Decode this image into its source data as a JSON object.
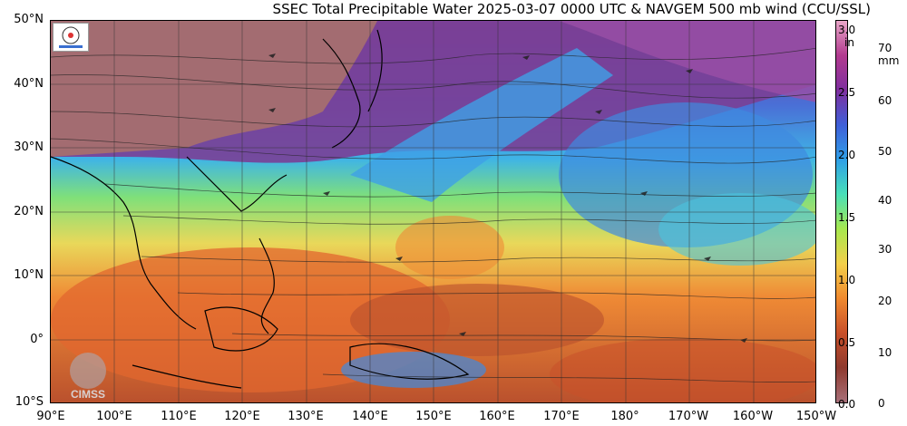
{
  "title": "SSEC Total Precipitable Water  2025-03-07 0000 UTC & NAVGEM 500 mb wind (CCU/SSL)",
  "lat_labels": [
    "50°N",
    "40°N",
    "30°N",
    "20°N",
    "10°N",
    "0°",
    "10°S"
  ],
  "lon_labels": [
    "90°E",
    "100°E",
    "110°E",
    "120°E",
    "130°E",
    "140°E",
    "150°E",
    "160°E",
    "170°E",
    "180°",
    "170°W",
    "160°W",
    "150°W"
  ],
  "colorbar": {
    "inch_unit": "in",
    "mm_unit": "mm",
    "inch_ticks": [
      "3.0",
      "2.5",
      "2.0",
      "1.5",
      "1.0",
      "0.5",
      "0.0"
    ],
    "mm_ticks": [
      "70",
      "60",
      "50",
      "40",
      "30",
      "20",
      "10",
      "0"
    ],
    "colors": [
      "#e9a6c8",
      "#b23a8f",
      "#7f2f9f",
      "#3f5fd8",
      "#2f9fe8",
      "#49e0b8",
      "#a7e84f",
      "#f4d04a",
      "#f08a2f",
      "#c8502a",
      "#8f3a2e",
      "#a8707a"
    ]
  },
  "logos": {
    "cimss_text": "CIMSS"
  },
  "colors": {
    "land_dry": "#a56f6f",
    "purple": "#7a3f96",
    "blue": "#3f8ae0",
    "green": "#6fe08a",
    "yellow": "#f1d25a",
    "orange": "#ef8a35",
    "brown": "#a4452f"
  }
}
